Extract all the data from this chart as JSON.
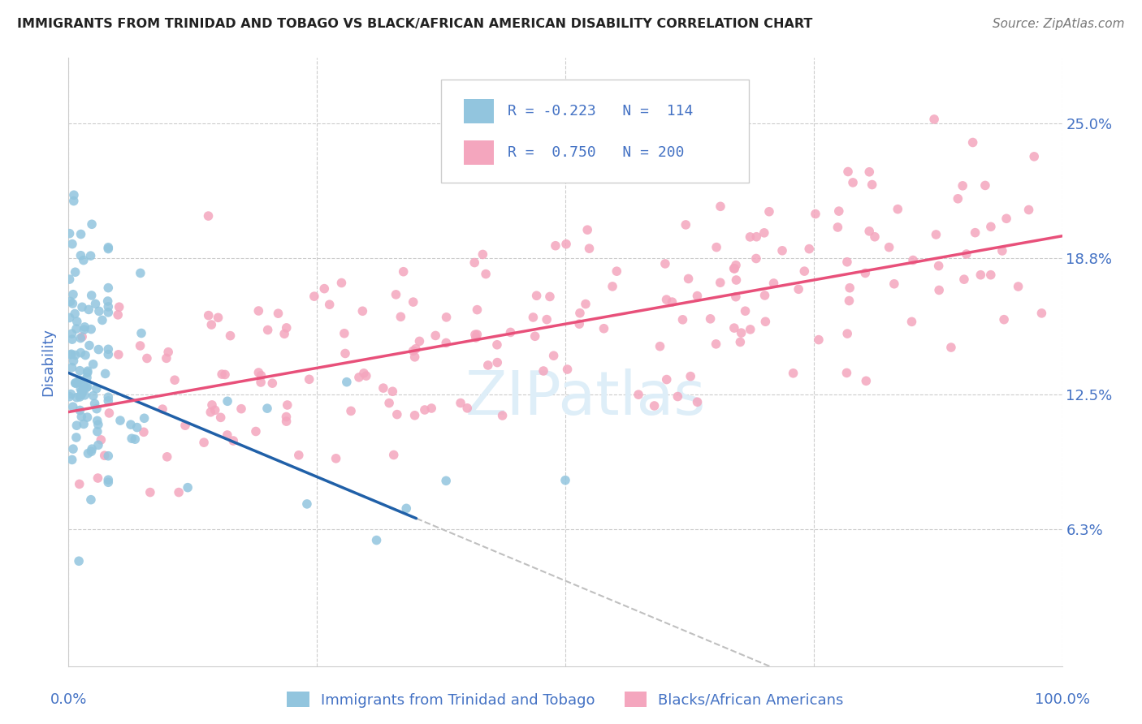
{
  "title": "IMMIGRANTS FROM TRINIDAD AND TOBAGO VS BLACK/AFRICAN AMERICAN DISABILITY CORRELATION CHART",
  "source": "Source: ZipAtlas.com",
  "ylabel": "Disability",
  "ytick_vals": [
    0.063,
    0.125,
    0.188,
    0.25
  ],
  "ytick_labels": [
    "6.3%",
    "12.5%",
    "18.8%",
    "25.0%"
  ],
  "xlim": [
    0.0,
    1.0
  ],
  "ylim": [
    0.0,
    0.28
  ],
  "color_blue_scatter": "#92c5de",
  "color_pink_scatter": "#f4a6be",
  "color_blue_line": "#2060a8",
  "color_pink_line": "#e8507a",
  "color_dashed": "#c0c0c0",
  "color_axis_text": "#4472c4",
  "color_title": "#222222",
  "background_color": "#ffffff",
  "grid_color": "#cccccc",
  "watermark_color": "#deeef8",
  "legend_box_color": "#ffffff",
  "legend_border_color": "#cccccc",
  "blue_line_x0": 0.0,
  "blue_line_x1": 0.35,
  "blue_line_y0": 0.135,
  "blue_line_y1": 0.068,
  "pink_line_x0": 0.0,
  "pink_line_x1": 1.0,
  "pink_line_y0": 0.117,
  "pink_line_y1": 0.198
}
